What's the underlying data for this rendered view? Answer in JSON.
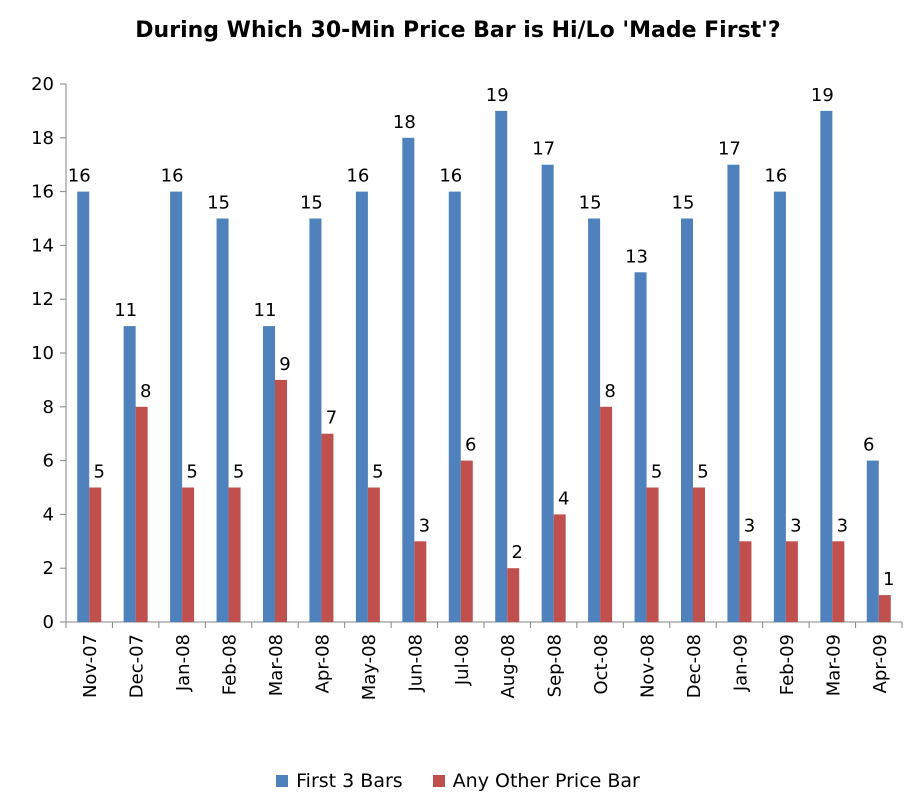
{
  "chart_data": {
    "type": "bar",
    "title": "During Which 30-Min Price Bar is Hi/Lo 'Made First'?",
    "xlabel": "",
    "ylabel": "",
    "ylim": [
      0,
      20
    ],
    "yticks": [
      0,
      2,
      4,
      6,
      8,
      10,
      12,
      14,
      16,
      18,
      20
    ],
    "grid": false,
    "legend_position": "bottom",
    "categories": [
      "Nov-07",
      "Dec-07",
      "Jan-08",
      "Feb-08",
      "Mar-08",
      "Apr-08",
      "May-08",
      "Jun-08",
      "Jul-08",
      "Aug-08",
      "Sep-08",
      "Oct-08",
      "Nov-08",
      "Dec-08",
      "Jan-09",
      "Feb-09",
      "Mar-09",
      "Apr-09"
    ],
    "series": [
      {
        "name": "First 3 Bars",
        "color": "#4F81BD",
        "values": [
          16,
          11,
          16,
          15,
          11,
          15,
          16,
          18,
          16,
          19,
          17,
          15,
          13,
          15,
          17,
          16,
          19,
          6
        ]
      },
      {
        "name": "Any Other Price Bar",
        "color": "#C0504D",
        "values": [
          5,
          8,
          5,
          5,
          9,
          7,
          5,
          3,
          6,
          2,
          4,
          8,
          5,
          5,
          3,
          3,
          3,
          1
        ]
      }
    ]
  }
}
